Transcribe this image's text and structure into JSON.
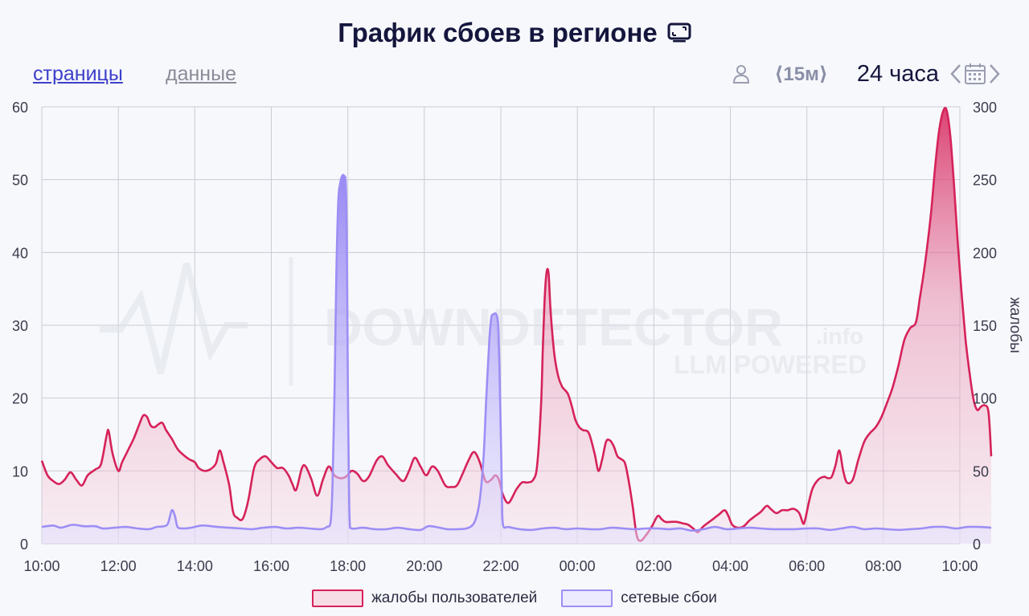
{
  "header": {
    "title": "График сбоев в регионе",
    "tabs": [
      "страницы",
      "данные"
    ],
    "interval_label": "⟨15м⟩",
    "range_label": "24 часа"
  },
  "icons": {
    "title_icon": "tv-icon",
    "user": "user-icon",
    "prev": "chevron-left-icon",
    "calendar": "calendar-icon",
    "next": "chevron-right-icon"
  },
  "colors": {
    "complaints": "#d6225a",
    "network": "#9d8ef5",
    "grid": "#c9ccd6",
    "axis_text": "#3a3c4e"
  },
  "watermark": {
    "main": "DOWNDETECTOR",
    "suffix": ".info",
    "sub": "LLM POWERED"
  },
  "chart_data": {
    "type": "area",
    "x_ticks": [
      "10:00",
      "12:00",
      "14:00",
      "16:00",
      "18:00",
      "20:00",
      "22:00",
      "00:00",
      "02:00",
      "04:00",
      "06:00",
      "08:00",
      "10:00"
    ],
    "y_left_ticks": [
      "0",
      "10",
      "20",
      "30",
      "40",
      "50",
      "60"
    ],
    "y_right_ticks": [
      "0",
      "50",
      "100",
      "150",
      "200",
      "250",
      "300"
    ],
    "y_left_range": [
      0,
      60
    ],
    "y_right_range": [
      0,
      300
    ],
    "y_right_label": "жалобы",
    "grid": true,
    "legend_position": "bottom",
    "series": [
      {
        "name": "жалобы пользователей",
        "axis": "right",
        "points": [
          [
            0,
            57
          ],
          [
            0.15,
            47
          ],
          [
            0.3,
            43
          ],
          [
            0.45,
            41
          ],
          [
            0.6,
            44
          ],
          [
            0.75,
            49
          ],
          [
            0.9,
            44
          ],
          [
            1.05,
            40
          ],
          [
            1.2,
            47
          ],
          [
            1.4,
            51
          ],
          [
            1.55,
            55
          ],
          [
            1.7,
            75
          ],
          [
            1.75,
            77
          ],
          [
            1.85,
            62
          ],
          [
            2.0,
            50
          ],
          [
            2.1,
            56
          ],
          [
            2.25,
            64
          ],
          [
            2.4,
            72
          ],
          [
            2.55,
            82
          ],
          [
            2.65,
            88
          ],
          [
            2.75,
            87
          ],
          [
            2.85,
            81
          ],
          [
            2.95,
            80
          ],
          [
            3.05,
            82
          ],
          [
            3.15,
            83
          ],
          [
            3.25,
            78
          ],
          [
            3.4,
            72
          ],
          [
            3.55,
            65
          ],
          [
            3.7,
            61
          ],
          [
            3.85,
            58
          ],
          [
            4.0,
            56
          ],
          [
            4.1,
            52
          ],
          [
            4.25,
            50
          ],
          [
            4.4,
            51
          ],
          [
            4.55,
            55
          ],
          [
            4.65,
            64
          ],
          [
            4.75,
            56
          ],
          [
            4.9,
            40
          ],
          [
            5.0,
            22
          ],
          [
            5.1,
            18
          ],
          [
            5.25,
            17
          ],
          [
            5.4,
            30
          ],
          [
            5.55,
            52
          ],
          [
            5.7,
            58
          ],
          [
            5.85,
            60
          ],
          [
            6.0,
            56
          ],
          [
            6.15,
            52
          ],
          [
            6.3,
            52
          ],
          [
            6.45,
            47
          ],
          [
            6.55,
            41
          ],
          [
            6.65,
            37
          ],
          [
            6.8,
            52
          ],
          [
            6.9,
            53
          ],
          [
            7.05,
            44
          ],
          [
            7.2,
            33
          ],
          [
            7.35,
            44
          ],
          [
            7.5,
            53
          ],
          [
            7.65,
            47
          ],
          [
            7.8,
            45
          ],
          [
            7.95,
            46
          ],
          [
            8.1,
            50
          ],
          [
            8.25,
            48
          ],
          [
            8.4,
            43
          ],
          [
            8.55,
            46
          ],
          [
            8.75,
            57
          ],
          [
            8.9,
            60
          ],
          [
            9.05,
            54
          ],
          [
            9.25,
            48
          ],
          [
            9.45,
            43
          ],
          [
            9.6,
            50
          ],
          [
            9.75,
            59
          ],
          [
            9.9,
            53
          ],
          [
            10.05,
            47
          ],
          [
            10.2,
            53
          ],
          [
            10.35,
            50
          ],
          [
            10.55,
            40
          ],
          [
            10.7,
            39
          ],
          [
            10.85,
            40
          ],
          [
            11.0,
            48
          ],
          [
            11.15,
            57
          ],
          [
            11.3,
            63
          ],
          [
            11.45,
            56
          ],
          [
            11.6,
            43
          ],
          [
            11.75,
            44
          ],
          [
            11.85,
            47
          ],
          [
            11.95,
            44
          ],
          [
            12.05,
            34
          ],
          [
            12.2,
            28
          ],
          [
            12.4,
            37
          ],
          [
            12.55,
            42
          ],
          [
            12.7,
            42
          ],
          [
            12.85,
            44
          ],
          [
            12.95,
            54
          ],
          [
            13.05,
            95
          ],
          [
            13.1,
            135
          ],
          [
            13.15,
            170
          ],
          [
            13.2,
            187
          ],
          [
            13.25,
            185
          ],
          [
            13.3,
            160
          ],
          [
            13.4,
            130
          ],
          [
            13.5,
            115
          ],
          [
            13.6,
            108
          ],
          [
            13.75,
            103
          ],
          [
            13.85,
            95
          ],
          [
            13.95,
            85
          ],
          [
            14.05,
            80
          ],
          [
            14.15,
            78
          ],
          [
            14.3,
            76
          ],
          [
            14.45,
            62
          ],
          [
            14.55,
            50
          ],
          [
            14.65,
            58
          ],
          [
            14.75,
            70
          ],
          [
            14.85,
            71
          ],
          [
            14.95,
            67
          ],
          [
            15.05,
            60
          ],
          [
            15.15,
            58
          ],
          [
            15.25,
            55
          ],
          [
            15.35,
            42
          ],
          [
            15.45,
            25
          ],
          [
            15.55,
            6
          ],
          [
            15.65,
            2
          ],
          [
            15.8,
            6
          ],
          [
            15.95,
            12
          ],
          [
            16.1,
            19
          ],
          [
            16.2,
            17
          ],
          [
            16.3,
            15
          ],
          [
            16.45,
            15
          ],
          [
            16.6,
            15
          ],
          [
            16.75,
            14
          ],
          [
            16.9,
            13
          ],
          [
            17.05,
            10
          ],
          [
            17.15,
            8
          ],
          [
            17.3,
            12
          ],
          [
            17.5,
            16
          ],
          [
            17.7,
            20
          ],
          [
            17.85,
            23
          ],
          [
            17.95,
            19
          ],
          [
            18.05,
            13
          ],
          [
            18.2,
            11
          ],
          [
            18.35,
            12
          ],
          [
            18.5,
            16
          ],
          [
            18.65,
            19
          ],
          [
            18.8,
            22
          ],
          [
            18.95,
            26
          ],
          [
            19.05,
            24
          ],
          [
            19.2,
            21
          ],
          [
            19.35,
            23
          ],
          [
            19.5,
            23
          ],
          [
            19.65,
            24
          ],
          [
            19.8,
            21
          ],
          [
            19.9,
            14
          ],
          [
            19.95,
            16
          ],
          [
            20.05,
            28
          ],
          [
            20.15,
            38
          ],
          [
            20.3,
            44
          ],
          [
            20.45,
            46
          ],
          [
            20.55,
            45
          ],
          [
            20.65,
            46
          ],
          [
            20.75,
            54
          ],
          [
            20.85,
            64
          ],
          [
            20.95,
            50
          ],
          [
            21.05,
            42
          ],
          [
            21.2,
            44
          ],
          [
            21.35,
            58
          ],
          [
            21.5,
            70
          ],
          [
            21.65,
            76
          ],
          [
            21.8,
            80
          ],
          [
            21.95,
            87
          ],
          [
            22.1,
            97
          ],
          [
            22.25,
            108
          ],
          [
            22.4,
            123
          ],
          [
            22.55,
            140
          ],
          [
            22.7,
            148
          ],
          [
            22.85,
            152
          ],
          [
            22.95,
            168
          ],
          [
            23.05,
            185
          ],
          [
            23.15,
            205
          ],
          [
            23.25,
            228
          ],
          [
            23.35,
            258
          ],
          [
            23.45,
            282
          ],
          [
            23.55,
            296
          ],
          [
            23.65,
            298
          ],
          [
            23.75,
            280
          ],
          [
            23.85,
            245
          ],
          [
            23.95,
            205
          ],
          [
            24.05,
            170
          ],
          [
            24.15,
            140
          ],
          [
            24.25,
            118
          ],
          [
            24.35,
            100
          ],
          [
            24.45,
            92
          ],
          [
            24.55,
            94
          ],
          [
            24.65,
            95
          ],
          [
            24.75,
            90
          ],
          [
            24.82,
            60
          ]
        ]
      },
      {
        "name": "сетевые сбои",
        "axis": "left",
        "points": [
          [
            0,
            2.3
          ],
          [
            0.3,
            2.5
          ],
          [
            0.5,
            2.2
          ],
          [
            0.8,
            2.6
          ],
          [
            1.1,
            2.4
          ],
          [
            1.4,
            2.4
          ],
          [
            1.6,
            2.1
          ],
          [
            1.9,
            2.2
          ],
          [
            2.2,
            2.3
          ],
          [
            2.5,
            2.1
          ],
          [
            2.8,
            2.0
          ],
          [
            3.0,
            2.3
          ],
          [
            3.2,
            2.4
          ],
          [
            3.3,
            2.8
          ],
          [
            3.4,
            4.6
          ],
          [
            3.48,
            3.8
          ],
          [
            3.55,
            2.3
          ],
          [
            3.7,
            2.1
          ],
          [
            3.9,
            2.2
          ],
          [
            4.2,
            2.5
          ],
          [
            4.6,
            2.3
          ],
          [
            4.9,
            2.2
          ],
          [
            5.2,
            2.1
          ],
          [
            5.5,
            2.0
          ],
          [
            5.8,
            2.2
          ],
          [
            6.1,
            2.3
          ],
          [
            6.4,
            2.1
          ],
          [
            6.7,
            2.2
          ],
          [
            7.0,
            2.1
          ],
          [
            7.3,
            2.0
          ],
          [
            7.45,
            2.3
          ],
          [
            7.55,
            3.0
          ],
          [
            7.6,
            8.0
          ],
          [
            7.65,
            20
          ],
          [
            7.7,
            37
          ],
          [
            7.75,
            47
          ],
          [
            7.8,
            49.5
          ],
          [
            7.85,
            50.5
          ],
          [
            7.9,
            50.5
          ],
          [
            7.95,
            49
          ],
          [
            7.98,
            38
          ],
          [
            8.0,
            22
          ],
          [
            8.03,
            8
          ],
          [
            8.05,
            3
          ],
          [
            8.1,
            2.1
          ],
          [
            8.4,
            2.2
          ],
          [
            8.7,
            2.0
          ],
          [
            9.0,
            2.0
          ],
          [
            9.3,
            2.2
          ],
          [
            9.6,
            2.0
          ],
          [
            9.9,
            1.9
          ],
          [
            10.1,
            2.4
          ],
          [
            10.3,
            2.3
          ],
          [
            10.6,
            2.0
          ],
          [
            10.9,
            2.0
          ],
          [
            11.1,
            2.1
          ],
          [
            11.25,
            2.5
          ],
          [
            11.35,
            3.5
          ],
          [
            11.45,
            6.0
          ],
          [
            11.55,
            12
          ],
          [
            11.62,
            20
          ],
          [
            11.7,
            28
          ],
          [
            11.75,
            31
          ],
          [
            11.8,
            31.5
          ],
          [
            11.88,
            31.5
          ],
          [
            11.93,
            30
          ],
          [
            11.96,
            25
          ],
          [
            12.0,
            15
          ],
          [
            12.03,
            6
          ],
          [
            12.06,
            2.5
          ],
          [
            12.2,
            2.3
          ],
          [
            12.5,
            2.0
          ],
          [
            12.8,
            1.9
          ],
          [
            13.1,
            2.1
          ],
          [
            13.4,
            2.2
          ],
          [
            13.7,
            2.0
          ],
          [
            14.0,
            2.1
          ],
          [
            14.3,
            2.0
          ],
          [
            14.6,
            2.0
          ],
          [
            14.9,
            2.2
          ],
          [
            15.2,
            2.1
          ],
          [
            15.5,
            2.0
          ],
          [
            15.8,
            2.1
          ],
          [
            16.1,
            2.1
          ],
          [
            16.4,
            2.0
          ],
          [
            16.7,
            2.1
          ],
          [
            17.0,
            1.8
          ],
          [
            17.3,
            2.0
          ],
          [
            17.6,
            2.3
          ],
          [
            17.9,
            2.0
          ],
          [
            18.2,
            2.1
          ],
          [
            18.5,
            2.2
          ],
          [
            18.8,
            2.1
          ],
          [
            19.1,
            2.0
          ],
          [
            19.4,
            2.0
          ],
          [
            19.7,
            2.0
          ],
          [
            20.0,
            2.1
          ],
          [
            20.3,
            2.1
          ],
          [
            20.6,
            1.9
          ],
          [
            20.9,
            2.1
          ],
          [
            21.2,
            2.3
          ],
          [
            21.5,
            2.0
          ],
          [
            21.8,
            2.1
          ],
          [
            22.1,
            2.0
          ],
          [
            22.4,
            1.9
          ],
          [
            22.7,
            2.0
          ],
          [
            23.0,
            2.1
          ],
          [
            23.3,
            2.3
          ],
          [
            23.6,
            2.3
          ],
          [
            23.9,
            2.1
          ],
          [
            24.2,
            2.3
          ],
          [
            24.5,
            2.3
          ],
          [
            24.82,
            2.2
          ]
        ]
      }
    ]
  }
}
